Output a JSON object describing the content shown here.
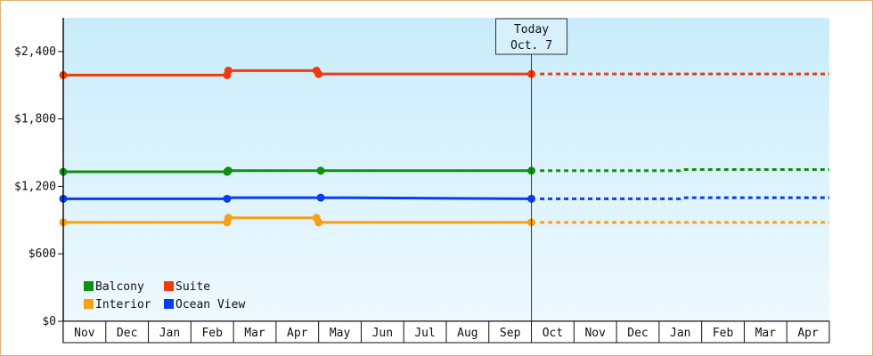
{
  "chart_data": {
    "type": "line",
    "title": "",
    "xlabel": "",
    "ylabel": "",
    "ylim": [
      0,
      2700
    ],
    "yticks": [
      0,
      600,
      1200,
      1800,
      2400
    ],
    "ytick_labels": [
      "$0",
      "$600",
      "$1,200",
      "$1,800",
      "$2,400"
    ],
    "months": [
      "Nov",
      "Dec",
      "Jan",
      "Feb",
      "Mar",
      "Apr",
      "May",
      "Jun",
      "Jul",
      "Aug",
      "Sep",
      "Oct",
      "Nov",
      "Dec",
      "Jan",
      "Feb",
      "Mar",
      "Apr"
    ],
    "today": {
      "line1": "Today",
      "line2": "Oct. 7",
      "x": 11.0
    },
    "legend": {
      "position": "bottom-left"
    },
    "series": [
      {
        "name": "Balcony",
        "color": "#109010",
        "solid": [
          [
            0,
            1330
          ],
          [
            3.85,
            1330
          ],
          [
            3.88,
            1340
          ],
          [
            6.05,
            1340
          ],
          [
            11.0,
            1340
          ]
        ],
        "markers": [
          [
            0,
            1330
          ],
          [
            3.85,
            1330
          ],
          [
            3.88,
            1340
          ],
          [
            6.05,
            1340
          ],
          [
            11.0,
            1340
          ]
        ],
        "projected": [
          [
            11.2,
            1340
          ],
          [
            14.5,
            1340
          ],
          [
            14.55,
            1350
          ],
          [
            18.0,
            1350
          ]
        ]
      },
      {
        "name": "Suite",
        "color": "#f03a0e",
        "solid": [
          [
            0,
            2190
          ],
          [
            3.85,
            2190
          ],
          [
            3.88,
            2230
          ],
          [
            5.95,
            2230
          ],
          [
            6.0,
            2200
          ],
          [
            11.0,
            2200
          ]
        ],
        "markers": [
          [
            0,
            2190
          ],
          [
            3.85,
            2190
          ],
          [
            3.88,
            2230
          ],
          [
            5.95,
            2230
          ],
          [
            6.0,
            2200
          ],
          [
            11.0,
            2200
          ]
        ],
        "projected": [
          [
            11.2,
            2200
          ],
          [
            18.0,
            2200
          ]
        ]
      },
      {
        "name": "Interior",
        "color": "#f5a016",
        "solid": [
          [
            0,
            880
          ],
          [
            3.85,
            880
          ],
          [
            3.88,
            920
          ],
          [
            5.95,
            920
          ],
          [
            6.0,
            880
          ],
          [
            11.0,
            880
          ]
        ],
        "markers": [
          [
            0,
            880
          ],
          [
            3.85,
            880
          ],
          [
            3.88,
            920
          ],
          [
            5.95,
            920
          ],
          [
            6.0,
            880
          ],
          [
            11.0,
            880
          ]
        ],
        "projected": [
          [
            11.2,
            880
          ],
          [
            18.0,
            880
          ]
        ]
      },
      {
        "name": "Ocean View",
        "color": "#0a3cf0",
        "solid": [
          [
            0,
            1090
          ],
          [
            3.85,
            1090
          ],
          [
            3.88,
            1100
          ],
          [
            6.05,
            1100
          ],
          [
            11.0,
            1090
          ]
        ],
        "markers": [
          [
            0,
            1090
          ],
          [
            3.85,
            1090
          ],
          [
            6.05,
            1100
          ],
          [
            11.0,
            1090
          ]
        ],
        "projected": [
          [
            11.2,
            1090
          ],
          [
            14.5,
            1090
          ],
          [
            14.55,
            1100
          ],
          [
            18.0,
            1100
          ]
        ]
      }
    ]
  }
}
